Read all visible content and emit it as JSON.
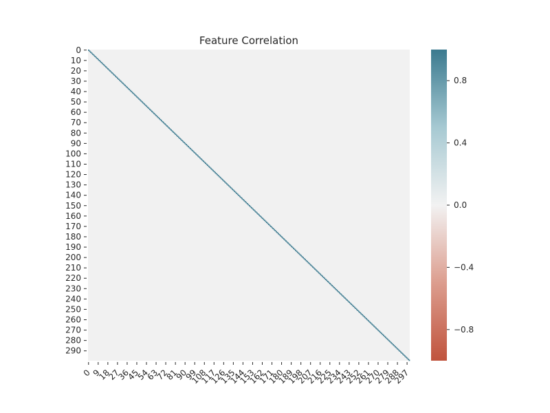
{
  "chart_data": {
    "type": "heatmap",
    "title": "Feature Correlation",
    "xlabel": "",
    "ylabel": "",
    "n": 300,
    "values_description": "correlation matrix; diagonal = 1.0, off-diagonal ≈ 0.0",
    "diagonal_value": 1.0,
    "off_diagonal_value": 0.0,
    "x_tick_labels": [
      "0",
      "9",
      "18",
      "27",
      "36",
      "45",
      "54",
      "63",
      "72",
      "81",
      "90",
      "99",
      "108",
      "117",
      "126",
      "135",
      "144",
      "153",
      "162",
      "171",
      "180",
      "189",
      "198",
      "207",
      "216",
      "225",
      "234",
      "243",
      "252",
      "261",
      "270",
      "279",
      "288",
      "297"
    ],
    "y_tick_labels": [
      "0",
      "10",
      "20",
      "30",
      "40",
      "50",
      "60",
      "70",
      "80",
      "90",
      "100",
      "110",
      "120",
      "130",
      "140",
      "150",
      "160",
      "170",
      "180",
      "190",
      "200",
      "210",
      "220",
      "230",
      "240",
      "250",
      "260",
      "270",
      "280",
      "290"
    ],
    "colorbar": {
      "vmin": -1.0,
      "vmax": 1.0,
      "ticks": [
        "0.8",
        "0.4",
        "0.0",
        "−0.4",
        "−0.8"
      ],
      "tick_values": [
        0.8,
        0.4,
        0.0,
        -0.4,
        -0.8
      ],
      "colors": {
        "low": "#c0533d",
        "mid": "#f2f2f2",
        "high": "#3b7a8f"
      }
    },
    "colors": {
      "background_cell": "#f1f1f1",
      "diagonal": "#3b7a8f"
    }
  }
}
